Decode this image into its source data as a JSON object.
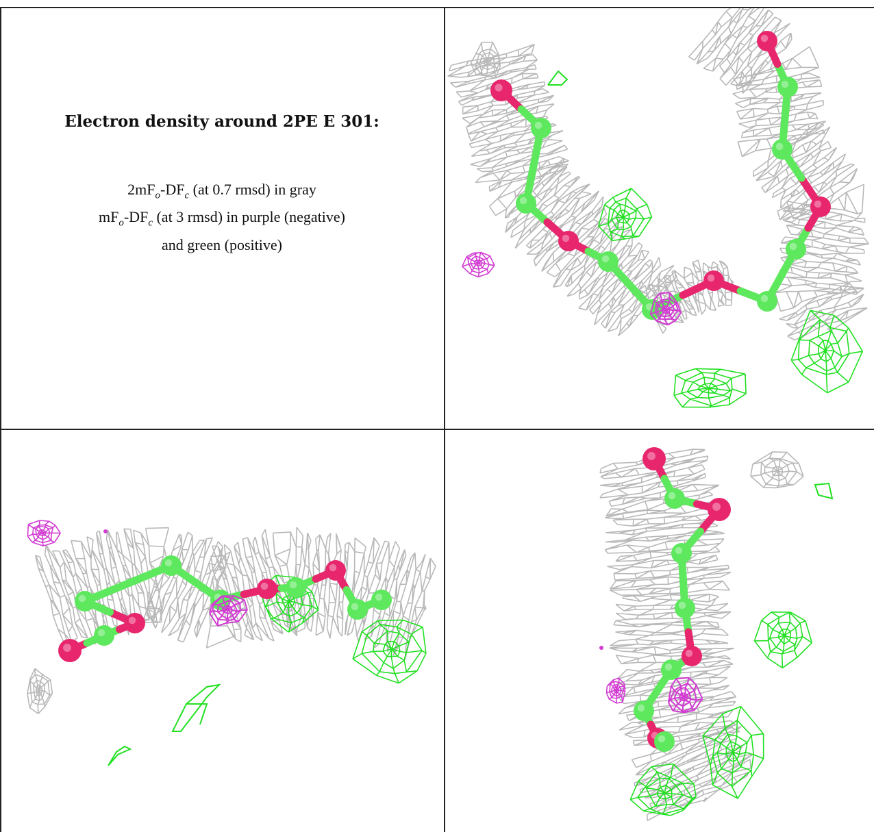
{
  "caption": {
    "title": "Electron density around 2PE E 301:",
    "line1": {
      "prefix": "2mF",
      "sub1": "o",
      "mid": "-DF",
      "sub2": "c",
      "suffix": " (at 0.7 rmsd) in gray"
    },
    "line2": {
      "prefix": "mF",
      "sub1": "o",
      "mid": "-DF",
      "sub2": "c",
      "suffix": " (at 3 rmsd) in purple (negative)"
    },
    "line3": "and green (positive)"
  },
  "colors": {
    "mesh_gray": "#b8b8b8",
    "mesh_purple": "#d23cd2",
    "mesh_green": "#22e022",
    "carbon": "#5de85d",
    "oxygen": "#e8266e",
    "border": "#222222"
  },
  "panels": [
    {
      "name": "top-right",
      "view": "view-1"
    },
    {
      "name": "bottom-left",
      "view": "view-2"
    },
    {
      "name": "bottom-right",
      "view": "view-3"
    }
  ]
}
